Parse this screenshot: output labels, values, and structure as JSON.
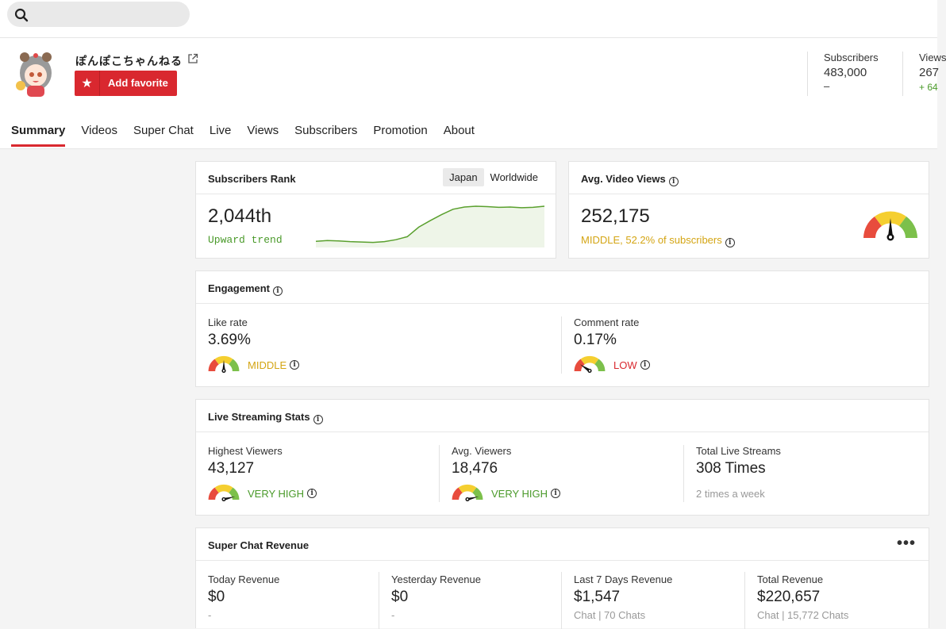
{
  "search": {
    "placeholder": ""
  },
  "channel": {
    "name": "ぽんぽこちゃんねる",
    "favorite_label": "Add favorite"
  },
  "stats": {
    "subscribers_label": "Subscribers",
    "subscribers_value": "483,000",
    "subscribers_delta": "–",
    "views_label": "Views",
    "views_value": "267",
    "views_delta": "+ 64"
  },
  "tabs": [
    "Summary",
    "Videos",
    "Super Chat",
    "Live",
    "Views",
    "Subscribers",
    "Promotion",
    "About"
  ],
  "rank": {
    "title": "Subscribers Rank",
    "seg_japan": "Japan",
    "seg_world": "Worldwide",
    "value": "2,044th",
    "trend": "Upward trend",
    "sparkline": [
      0.08,
      0.1,
      0.09,
      0.07,
      0.06,
      0.05,
      0.07,
      0.12,
      0.2,
      0.45,
      0.62,
      0.78,
      0.92,
      0.98,
      1.0,
      0.99,
      0.97,
      0.98,
      0.96,
      0.97,
      1.0
    ]
  },
  "avg_views": {
    "title": "Avg. Video Views",
    "value": "252,175",
    "note": "MIDDLE, 52.2% of subscribers"
  },
  "engagement": {
    "title": "Engagement",
    "like_label": "Like rate",
    "like_value": "3.69%",
    "like_rating": "MIDDLE",
    "comment_label": "Comment rate",
    "comment_value": "0.17%",
    "comment_rating": "LOW"
  },
  "live": {
    "title": "Live Streaming Stats",
    "highest_label": "Highest Viewers",
    "highest_value": "43,127",
    "highest_rating": "VERY HIGH",
    "avg_label": "Avg. Viewers",
    "avg_value": "18,476",
    "avg_rating": "VERY HIGH",
    "total_label": "Total Live Streams",
    "total_value": "308 Times",
    "total_note": "2 times a week"
  },
  "superchat": {
    "title": "Super Chat Revenue",
    "today_label": "Today Revenue",
    "today_value": "$0",
    "today_note": "-",
    "yesterday_label": "Yesterday Revenue",
    "yesterday_value": "$0",
    "yesterday_note": "-",
    "week_label": "Last 7 Days Revenue",
    "week_value": "$1,547",
    "week_note": "Chat | 70 Chats",
    "total_label": "Total Revenue",
    "total_value": "$220,657",
    "total_note": "Chat | 15,772 Chats"
  },
  "colors": {
    "accent": "#d9282f",
    "green": "#4a9a2a",
    "yellow": "#d4a514",
    "gauge_red": "#e84c3d",
    "gauge_yellow": "#f5cf30",
    "gauge_green": "#7cc04b"
  }
}
